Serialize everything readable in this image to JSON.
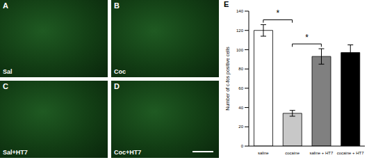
{
  "panels": [
    {
      "letter": "A",
      "label": "Sal"
    },
    {
      "letter": "B",
      "label": "Coc"
    },
    {
      "letter": "C",
      "label": "Sal+HT7"
    },
    {
      "letter": "D",
      "label": "Coc+HT7"
    }
  ],
  "chart_letter": "E",
  "chart_data": {
    "type": "bar",
    "categories": [
      "saline",
      "cocaine",
      "saline + HT7",
      "cocaine + HT7"
    ],
    "values": [
      120,
      34,
      93,
      97
    ],
    "errors": [
      6,
      3,
      8,
      8
    ],
    "colors": [
      "#ffffff",
      "#c8c8c8",
      "#808080",
      "#000000"
    ],
    "ylabel": "Number of c-fos positive cells",
    "ylim": [
      0,
      140
    ],
    "yticks": [
      0,
      20,
      40,
      60,
      80,
      100,
      120,
      140
    ],
    "grid": false,
    "annotations": [
      {
        "between": [
          "saline",
          "cocaine"
        ],
        "text": "*"
      },
      {
        "between": [
          "cocaine",
          "saline + HT7"
        ],
        "text": "*"
      }
    ]
  }
}
